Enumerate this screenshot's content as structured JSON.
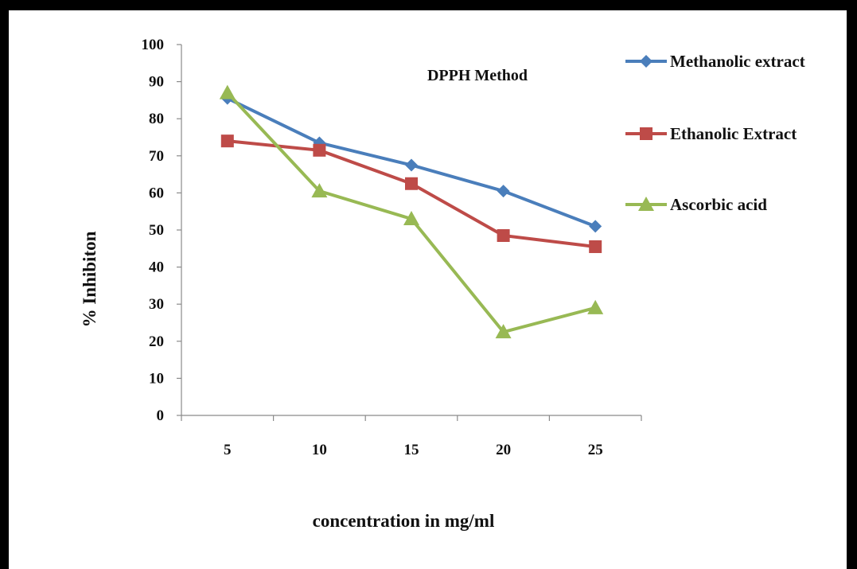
{
  "chart_data": {
    "type": "line",
    "title": "DPPH Method",
    "xlabel": "concentration in mg/ml",
    "ylabel": "% Inhibiton",
    "categories": [
      "5",
      "10",
      "15",
      "20",
      "25"
    ],
    "yticks": [
      "0",
      "10",
      "20",
      "30",
      "40",
      "50",
      "60",
      "70",
      "80",
      "90",
      "100"
    ],
    "ylim": [
      0,
      100
    ],
    "grid": false,
    "legend_position": "right",
    "series": [
      {
        "name": "Methanolic extract",
        "color": "#4a7ebb",
        "marker": "diamond",
        "values": [
          85.5,
          73.5,
          67.5,
          60.5,
          51.0
        ]
      },
      {
        "name": "Ethanolic Extract",
        "color": "#be4b48",
        "marker": "square",
        "values": [
          74.0,
          71.5,
          62.5,
          48.5,
          45.5
        ]
      },
      {
        "name": "Ascorbic acid",
        "color": "#98b954",
        "marker": "triangle",
        "values": [
          87.0,
          60.5,
          53.0,
          22.5,
          29.0
        ]
      }
    ]
  }
}
